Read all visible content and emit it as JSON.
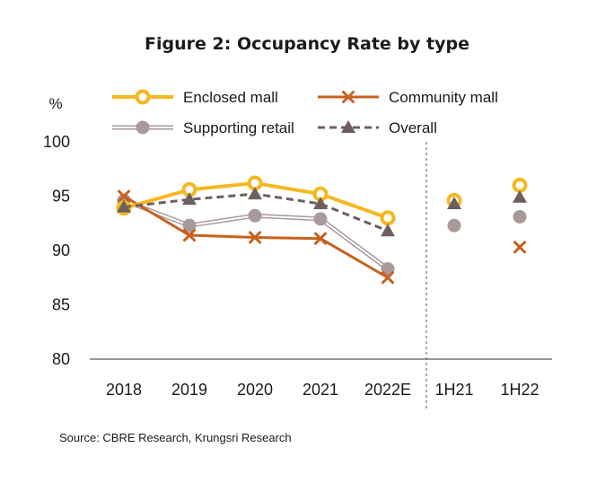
{
  "chart_data": {
    "type": "line",
    "title": "Figure 2: Occupancy Rate by type",
    "ylabel": "%",
    "ylim": [
      80,
      100
    ],
    "yticks": [
      80,
      85,
      90,
      95,
      100
    ],
    "categories": [
      "2018",
      "2019",
      "2020",
      "2021",
      "2022E",
      "1H21",
      "1H22"
    ],
    "legend_position": "top",
    "source": "Source: CBRE Research, Krungsri Research",
    "series": [
      {
        "name": "Enclosed mall",
        "color": "#F5B820",
        "marker": "ring",
        "values": [
          93.9,
          95.6,
          96.2,
          95.2,
          93.0,
          94.6,
          96.0
        ]
      },
      {
        "name": "Community mall",
        "color": "#C8611E",
        "marker": "x",
        "values": [
          95.0,
          91.4,
          91.2,
          91.1,
          87.5,
          null,
          90.3
        ]
      },
      {
        "name": "Supporting retail",
        "color": "#A89A9A",
        "marker": "dot",
        "values": [
          94.6,
          92.3,
          93.2,
          92.9,
          88.3,
          92.3,
          93.1
        ]
      },
      {
        "name": "Overall",
        "color": "#6E5F5F",
        "marker": "triangle",
        "values": [
          94.0,
          94.7,
          95.2,
          94.3,
          91.8,
          94.3,
          94.9
        ]
      }
    ]
  }
}
